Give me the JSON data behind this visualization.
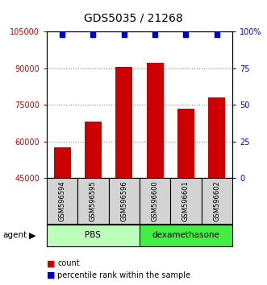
{
  "title": "GDS5035 / 21268",
  "categories": [
    "GSM596594",
    "GSM596595",
    "GSM596596",
    "GSM596600",
    "GSM596601",
    "GSM596602"
  ],
  "counts": [
    57500,
    68000,
    90500,
    92000,
    73500,
    78000
  ],
  "percentiles": [
    98,
    98,
    98,
    98,
    98,
    98
  ],
  "groups": [
    {
      "label": "PBS",
      "color": "#bbffbb",
      "indices": [
        0,
        1,
        2
      ]
    },
    {
      "label": "dexamethasone",
      "color": "#44ee44",
      "indices": [
        3,
        4,
        5
      ]
    }
  ],
  "bar_color": "#cc0000",
  "scatter_color": "#0000cc",
  "ylim_left": [
    45000,
    105000
  ],
  "ylim_right": [
    0,
    100
  ],
  "yticks_left": [
    45000,
    60000,
    75000,
    90000,
    105000
  ],
  "yticks_right": [
    0,
    25,
    50,
    75,
    100
  ],
  "yticklabels_right": [
    "0",
    "25",
    "50",
    "75",
    "100%"
  ],
  "legend_count_label": "count",
  "legend_pct_label": "percentile rank within the sample",
  "agent_label": "agent",
  "gridline_color": "#888888",
  "background_color": "#ffffff",
  "bar_width": 0.55
}
